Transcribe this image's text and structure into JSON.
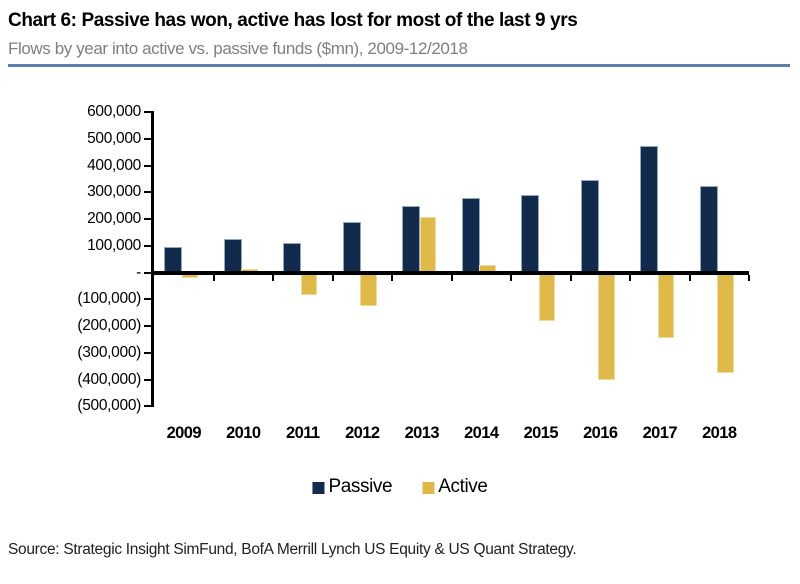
{
  "header": {
    "title": "Chart 6: Passive has won, active has lost for most of the last 9 yrs",
    "subtitle": "Flows by year into active vs. passive funds ($mn), 2009-12/2018"
  },
  "footer": {
    "source": "Source: Strategic Insight SimFund, BofA Merrill Lynch US Equity & US Quant Strategy."
  },
  "colors": {
    "passive": "#122a4c",
    "active": "#e0b94b",
    "rule_blue": "#5b7fa8",
    "subtitle_gray": "#7f7f7f",
    "axis_black": "#000000"
  },
  "legend": {
    "items": [
      {
        "label": "Passive",
        "color": "#122a4c"
      },
      {
        "label": "Active",
        "color": "#e0b94b"
      }
    ]
  },
  "chart_data": {
    "type": "bar",
    "title": "Chart 6: Passive has won, active has lost for most of the last 9 yrs",
    "subtitle": "Flows by year into active vs. passive funds ($mn), 2009-12/2018",
    "categories": [
      "2009",
      "2010",
      "2011",
      "2012",
      "2013",
      "2014",
      "2015",
      "2016",
      "2017",
      "2018"
    ],
    "series": [
      {
        "name": "Passive",
        "color": "#122a4c",
        "values": [
          95000,
          125000,
          110000,
          190000,
          250000,
          280000,
          290000,
          345000,
          475000,
          325000
        ]
      },
      {
        "name": "Active",
        "color": "#e0b94b",
        "values": [
          -20000,
          15000,
          -85000,
          -125000,
          210000,
          30000,
          -180000,
          -400000,
          -245000,
          -375000
        ]
      }
    ],
    "xlabel": "",
    "ylabel": "",
    "ylim": [
      -500000,
      600000
    ],
    "ytick_step": 100000,
    "ytick_labels": [
      "600,000",
      "500,000",
      "400,000",
      "300,000",
      "200,000",
      "100,000",
      "-",
      "(100,000)",
      "(200,000)",
      "(300,000)",
      "(400,000)",
      "(500,000)"
    ],
    "grid": false,
    "legend_position": "bottom"
  }
}
